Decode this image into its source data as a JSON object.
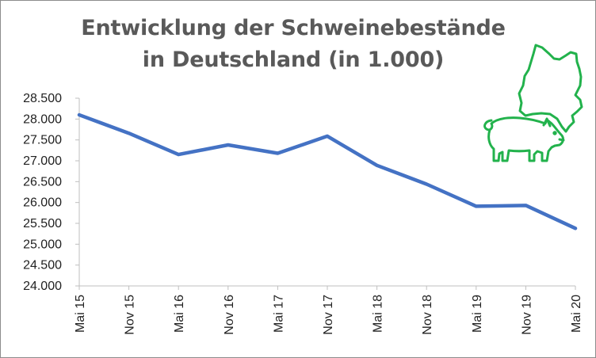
{
  "chart_data": {
    "type": "line",
    "title": [
      "Entwicklung der Schweinebestände",
      "in Deutschland (in 1.000)"
    ],
    "xlabel": "",
    "ylabel": "",
    "categories": [
      "Mai 15",
      "Nov 15",
      "Mai 16",
      "Nov 16",
      "Mai 17",
      "Nov 17",
      "Mai 18",
      "Nov 18",
      "Mai 19",
      "Nov 19",
      "Mai 20"
    ],
    "series": [
      {
        "values": [
          28100,
          27660,
          27150,
          27380,
          27180,
          27590,
          26890,
          26440,
          25910,
          25930,
          25380
        ]
      }
    ],
    "y_ticks": [
      "24.000",
      "24.500",
      "25.000",
      "25.500",
      "26.000",
      "26.500",
      "27.000",
      "27.500",
      "28.000",
      "28.500"
    ],
    "ylim": [
      24000,
      28500
    ],
    "grid": false,
    "line_color": "#4472c4",
    "axis_color": "#bfbfbf",
    "icon": "pig-and-germany-map-icon",
    "icon_color": "#22b24c"
  }
}
